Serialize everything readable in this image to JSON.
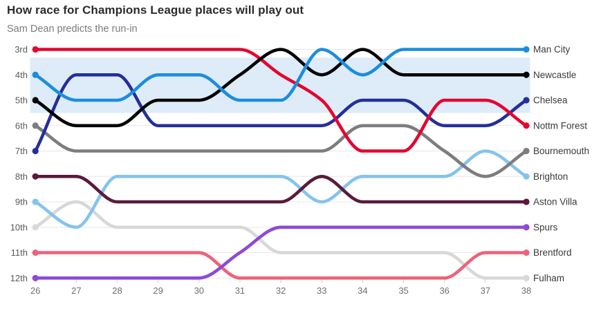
{
  "header": {
    "title": "How race for Champions League places will play out",
    "subtitle": "Sam Dean predicts the run-in"
  },
  "chart_data": {
    "type": "line",
    "subtype": "bump-rank-chart",
    "x": [
      26,
      27,
      28,
      29,
      30,
      31,
      32,
      33,
      34,
      35,
      36,
      37,
      38
    ],
    "xlabel": "",
    "ylabel": "",
    "y_axis_labels": [
      "3rd",
      "4th",
      "5th",
      "6th",
      "7th",
      "8th",
      "9th",
      "10th",
      "11th",
      "12th"
    ],
    "y_positions": [
      3,
      4,
      5,
      6,
      7,
      8,
      9,
      10,
      11,
      12
    ],
    "grid": "horizontal",
    "legend_position": "right-of-line-ends",
    "highlight_band": {
      "meaning": "Champions League places zone",
      "from_position": 3.32,
      "to_position": 5.5,
      "color": "#ddecf8"
    },
    "colors": {
      "gridline": "#e7e7e7",
      "tick": "#cccccc",
      "axis_text": "#6e6e6e",
      "rank_text": "#5a5a5a",
      "team_text": "#3a3a3a"
    },
    "series": [
      {
        "name": "Man City",
        "color": "#1b8de0",
        "z": 9,
        "positions": [
          4,
          5,
          5,
          4,
          4,
          5,
          5,
          3,
          4,
          3,
          3,
          3,
          3
        ]
      },
      {
        "name": "Newcastle",
        "color": "#000000",
        "z": 8,
        "positions": [
          5,
          6,
          6,
          5,
          5,
          4,
          3,
          4,
          3,
          4,
          4,
          4,
          4
        ]
      },
      {
        "name": "Chelsea",
        "color": "#242f9b",
        "z": 6,
        "positions": [
          7,
          4,
          4,
          6,
          6,
          6,
          6,
          6,
          5,
          5,
          6,
          6,
          5
        ]
      },
      {
        "name": "Nottm Forest",
        "color": "#e4062f",
        "z": 7,
        "positions": [
          3,
          3,
          3,
          3,
          3,
          3,
          4,
          5,
          7,
          7,
          5,
          5,
          6
        ]
      },
      {
        "name": "Bournemouth",
        "color": "#7d7d7d",
        "z": 4,
        "positions": [
          6,
          7,
          7,
          7,
          7,
          7,
          7,
          7,
          6,
          6,
          7,
          8,
          7
        ]
      },
      {
        "name": "Brighton",
        "color": "#85c3ec",
        "z": 3,
        "positions": [
          9,
          10,
          8,
          8,
          8,
          8,
          8,
          9,
          8,
          8,
          8,
          7,
          8
        ]
      },
      {
        "name": "Aston Villa",
        "color": "#5a1a3c",
        "z": 5,
        "positions": [
          8,
          8,
          9,
          9,
          9,
          9,
          9,
          8,
          9,
          9,
          9,
          9,
          9
        ]
      },
      {
        "name": "Spurs",
        "color": "#8c4bd4",
        "z": 2,
        "positions": [
          12,
          12,
          12,
          12,
          12,
          11,
          10,
          10,
          10,
          10,
          10,
          10,
          10
        ]
      },
      {
        "name": "Brentford",
        "color": "#ed6379",
        "z": 1,
        "positions": [
          11,
          11,
          11,
          11,
          11,
          12,
          12,
          12,
          12,
          12,
          12,
          11,
          11
        ]
      },
      {
        "name": "Fulham",
        "color": "#d8d8d8",
        "z": 0,
        "positions": [
          10,
          9,
          10,
          10,
          10,
          10,
          11,
          11,
          11,
          11,
          11,
          12,
          12
        ]
      }
    ]
  }
}
